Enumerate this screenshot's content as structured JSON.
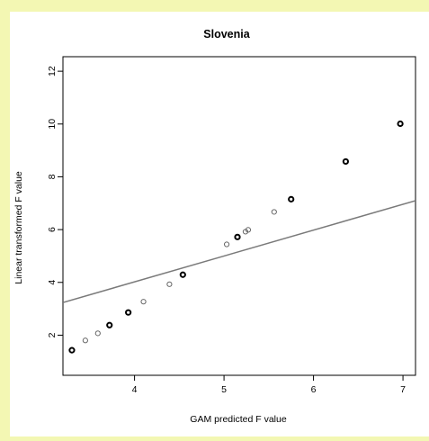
{
  "chart_data": {
    "type": "scatter",
    "title": "Slovenia",
    "xlabel": "GAM predicted F value",
    "ylabel": "Linear transformed F value",
    "xlim": [
      3.2,
      7.14
    ],
    "ylim": [
      0.48,
      12.55
    ],
    "xticks": [
      4,
      5,
      6,
      7
    ],
    "yticks": [
      2,
      4,
      6,
      8,
      10,
      12
    ],
    "grid": false,
    "bold_points": [
      {
        "x": 3.3,
        "y": 1.43
      },
      {
        "x": 3.72,
        "y": 2.38
      },
      {
        "x": 3.93,
        "y": 2.86
      },
      {
        "x": 4.54,
        "y": 4.29
      },
      {
        "x": 5.15,
        "y": 5.72
      },
      {
        "x": 5.75,
        "y": 7.15
      },
      {
        "x": 6.36,
        "y": 8.58
      },
      {
        "x": 6.97,
        "y": 10.01
      }
    ],
    "light_points": [
      {
        "x": 3.45,
        "y": 1.8
      },
      {
        "x": 3.59,
        "y": 2.07
      },
      {
        "x": 4.1,
        "y": 3.27
      },
      {
        "x": 4.39,
        "y": 3.93
      },
      {
        "x": 5.03,
        "y": 5.44
      },
      {
        "x": 5.24,
        "y": 5.92
      },
      {
        "x": 5.27,
        "y": 5.99
      },
      {
        "x": 5.56,
        "y": 6.67
      }
    ],
    "reference_line": {
      "intercept": 0.1,
      "slope": 0.98
    },
    "colors": {
      "bold_points": "#000000",
      "light_points": "#666666",
      "line": "#7a7a7a",
      "frame": "#000000"
    }
  }
}
